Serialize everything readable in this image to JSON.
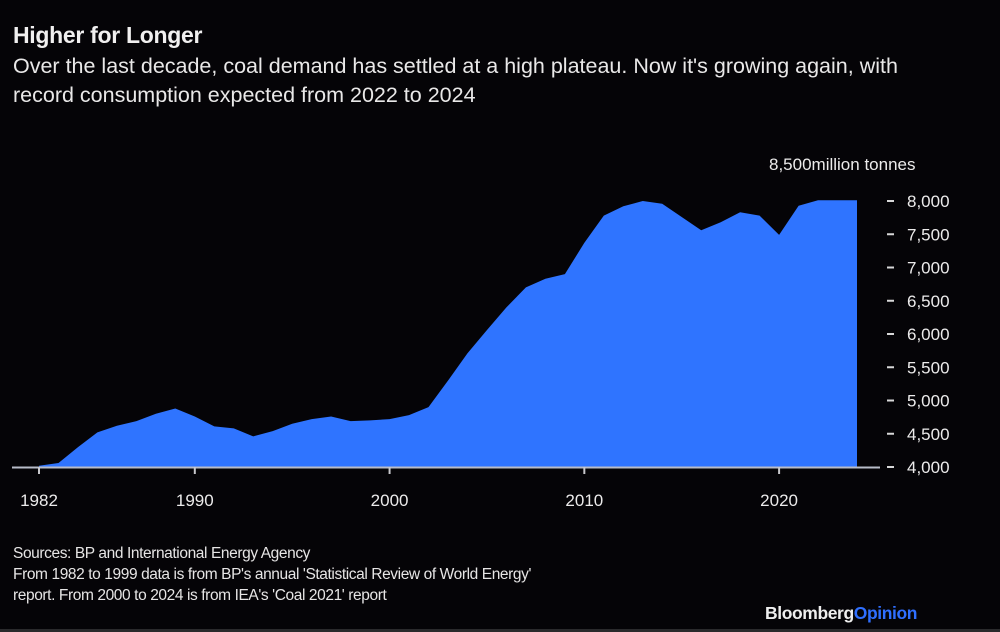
{
  "header": {
    "title": "Higher for Longer",
    "subtitle": "Over the last decade, coal demand has settled at a high plateau. Now it's growing again, with record consumption expected from 2022 to 2024"
  },
  "chart_data": {
    "type": "area",
    "title": "Higher for Longer",
    "subtitle": "Over the last decade, coal demand has settled at a high plateau. Now it's growing again, with record consumption expected from 2022 to 2024",
    "unit_label": "8,500million tonnes",
    "xlabel": "",
    "ylabel": "million tonnes",
    "fill_color": "#2f74ff",
    "ylim": [
      4000,
      8500
    ],
    "xlim": [
      1982,
      2024
    ],
    "y_axis_position": "right",
    "grid": false,
    "yticks": [
      {
        "value": 4000,
        "label": "4,000"
      },
      {
        "value": 4500,
        "label": "4,500"
      },
      {
        "value": 5000,
        "label": "5,000"
      },
      {
        "value": 5500,
        "label": "5,500"
      },
      {
        "value": 6000,
        "label": "6,000"
      },
      {
        "value": 6500,
        "label": "6,500"
      },
      {
        "value": 7000,
        "label": "7,000"
      },
      {
        "value": 7500,
        "label": "7,500"
      },
      {
        "value": 8000,
        "label": "8,000"
      }
    ],
    "xticks": [
      {
        "value": 1982,
        "label": "1982"
      },
      {
        "value": 1990,
        "label": "1990"
      },
      {
        "value": 2000,
        "label": "2000"
      },
      {
        "value": 2010,
        "label": "2010"
      },
      {
        "value": 2020,
        "label": "2020"
      }
    ],
    "x": [
      1982,
      1983,
      1984,
      1985,
      1986,
      1987,
      1988,
      1989,
      1990,
      1991,
      1992,
      1993,
      1994,
      1995,
      1996,
      1997,
      1998,
      1999,
      2000,
      2001,
      2002,
      2003,
      2004,
      2005,
      2006,
      2007,
      2008,
      2009,
      2010,
      2011,
      2012,
      2013,
      2014,
      2015,
      2016,
      2017,
      2018,
      2019,
      2020,
      2021,
      2022,
      2023,
      2024
    ],
    "values": [
      4020,
      4060,
      4300,
      4520,
      4620,
      4690,
      4800,
      4880,
      4760,
      4610,
      4580,
      4460,
      4540,
      4650,
      4720,
      4760,
      4690,
      4700,
      4720,
      4780,
      4900,
      5300,
      5710,
      6060,
      6400,
      6700,
      6830,
      6900,
      7370,
      7780,
      7920,
      8000,
      7960,
      7760,
      7560,
      7680,
      7830,
      7780,
      7490,
      7930,
      8010,
      8010,
      8010
    ]
  },
  "footer": {
    "source_line1": "Sources: BP and International Energy Agency",
    "source_line2": "From 1982 to 1999 data is from BP's annual 'Statistical Review of World Energy'",
    "source_line3": "report. From 2000 to 2024 is from IEA's 'Coal 2021' report",
    "brand_part1": "Bloomberg",
    "brand_part2": "Opinion"
  }
}
